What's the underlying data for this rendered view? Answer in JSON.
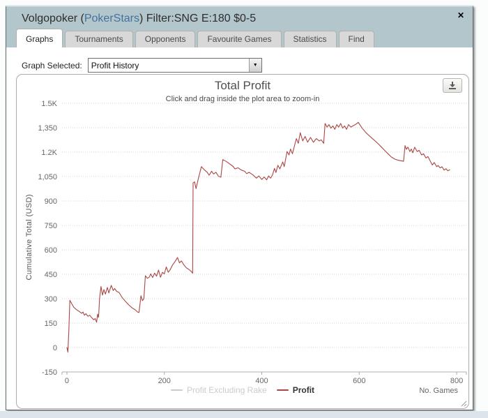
{
  "dialog": {
    "header": {
      "title_prefix": "Volgopoker (",
      "title_brand": "PokerStars",
      "title_suffix": ") Filter:SNG E:180 $0-5",
      "brand_color": "#44719e",
      "close_icon": "✕",
      "background_color": "#b3c6cc"
    },
    "tabs": [
      {
        "label": "Graphs",
        "active": true
      },
      {
        "label": "Tournaments",
        "active": false
      },
      {
        "label": "Opponents",
        "active": false
      },
      {
        "label": "Favourite Games",
        "active": false
      },
      {
        "label": "Statistics",
        "active": false
      },
      {
        "label": "Find",
        "active": false
      }
    ],
    "graph_selector": {
      "label": "Graph Selected:",
      "value": "Profit History",
      "dropdown_icon": "▼"
    }
  },
  "chart_data": {
    "type": "line",
    "title": "Total Profit",
    "subtitle": "Click and drag inside the plot area to zoom-in",
    "xlabel": "No. Games",
    "ylabel": "Cumulative Total (USD)",
    "xlim": [
      -10,
      820
    ],
    "ylim": [
      -150,
      1500
    ],
    "x_ticks": [
      0,
      200,
      400,
      600,
      800
    ],
    "y_ticks": [
      {
        "value": -150,
        "label": "-150"
      },
      {
        "value": 0,
        "label": "0"
      },
      {
        "value": 150,
        "label": "150"
      },
      {
        "value": 300,
        "label": "300"
      },
      {
        "value": 450,
        "label": "450"
      },
      {
        "value": 600,
        "label": "600"
      },
      {
        "value": 750,
        "label": "750"
      },
      {
        "value": 900,
        "label": "900"
      },
      {
        "value": 1050,
        "label": "1,050"
      },
      {
        "value": 1200,
        "label": "1.2K"
      },
      {
        "value": 1350,
        "label": "1,350"
      },
      {
        "value": 1500,
        "label": "1.5K"
      }
    ],
    "grid": "horizontal-dotted",
    "grid_color": "#d4d4d4",
    "axis_line_color": "#aab0b3",
    "legend_position": "bottom-center",
    "series": [
      {
        "name": "Profit Excluding Rake",
        "color": "#cccccc",
        "visible": false,
        "points": []
      },
      {
        "name": "Profit",
        "color": "#AA4643",
        "visible": true,
        "points": [
          [
            0,
            0
          ],
          [
            2,
            -28
          ],
          [
            4,
            110
          ],
          [
            6,
            290
          ],
          [
            10,
            268
          ],
          [
            14,
            248
          ],
          [
            18,
            236
          ],
          [
            22,
            228
          ],
          [
            26,
            220
          ],
          [
            30,
            210
          ],
          [
            33,
            218
          ],
          [
            36,
            198
          ],
          [
            39,
            208
          ],
          [
            43,
            192
          ],
          [
            47,
            198
          ],
          [
            51,
            183
          ],
          [
            55,
            170
          ],
          [
            58,
            178
          ],
          [
            61,
            155
          ],
          [
            63,
            205
          ],
          [
            65,
            185
          ],
          [
            67,
            300
          ],
          [
            70,
            375
          ],
          [
            73,
            322
          ],
          [
            76,
            356
          ],
          [
            79,
            328
          ],
          [
            83,
            369
          ],
          [
            86,
            335
          ],
          [
            91,
            382
          ],
          [
            95,
            350
          ],
          [
            98,
            362
          ],
          [
            102,
            345
          ],
          [
            107,
            338
          ],
          [
            113,
            308
          ],
          [
            120,
            284
          ],
          [
            127,
            262
          ],
          [
            134,
            243
          ],
          [
            140,
            232
          ],
          [
            145,
            218
          ],
          [
            148,
            215
          ],
          [
            152,
            318
          ],
          [
            155,
            288
          ],
          [
            158,
            300
          ],
          [
            161,
            441
          ],
          [
            165,
            425
          ],
          [
            169,
            432
          ],
          [
            172,
            452
          ],
          [
            176,
            430
          ],
          [
            180,
            457
          ],
          [
            184,
            438
          ],
          [
            188,
            476
          ],
          [
            192,
            431
          ],
          [
            196,
            462
          ],
          [
            200,
            452
          ],
          [
            204,
            495
          ],
          [
            208,
            462
          ],
          [
            212,
            478
          ],
          [
            217,
            508
          ],
          [
            222,
            528
          ],
          [
            227,
            553
          ],
          [
            231,
            520
          ],
          [
            235,
            532
          ],
          [
            240,
            508
          ],
          [
            245,
            490
          ],
          [
            250,
            480
          ],
          [
            255,
            468
          ],
          [
            258,
            456
          ],
          [
            259,
            1011
          ],
          [
            262,
            1018
          ],
          [
            265,
            976
          ],
          [
            270,
            1040
          ],
          [
            276,
            1111
          ],
          [
            282,
            1092
          ],
          [
            288,
            1076
          ],
          [
            292,
            1058
          ],
          [
            297,
            1083
          ],
          [
            301,
            1066
          ],
          [
            306,
            1076
          ],
          [
            311,
            1052
          ],
          [
            316,
            1046
          ],
          [
            320,
            1154
          ],
          [
            327,
            1143
          ],
          [
            334,
            1128
          ],
          [
            341,
            1112
          ],
          [
            345,
            1097
          ],
          [
            351,
            1104
          ],
          [
            358,
            1090
          ],
          [
            365,
            1082
          ],
          [
            369,
            1068
          ],
          [
            374,
            1076
          ],
          [
            382,
            1060
          ],
          [
            389,
            1040
          ],
          [
            394,
            1054
          ],
          [
            400,
            1032
          ],
          [
            405,
            1047
          ],
          [
            410,
            1030
          ],
          [
            414,
            1054
          ],
          [
            418,
            1040
          ],
          [
            422,
            1060
          ],
          [
            426,
            1100
          ],
          [
            429,
            1075
          ],
          [
            433,
            1119
          ],
          [
            437,
            1097
          ],
          [
            443,
            1140
          ],
          [
            446,
            1111
          ],
          [
            452,
            1204
          ],
          [
            456,
            1183
          ],
          [
            459,
            1219
          ],
          [
            463,
            1190
          ],
          [
            471,
            1283
          ],
          [
            475,
            1254
          ],
          [
            479,
            1319
          ],
          [
            484,
            1269
          ],
          [
            489,
            1297
          ],
          [
            494,
            1261
          ],
          [
            500,
            1290
          ],
          [
            506,
            1261
          ],
          [
            512,
            1283
          ],
          [
            518,
            1269
          ],
          [
            522,
            1276
          ],
          [
            527,
            1254
          ],
          [
            530,
            1376
          ],
          [
            534,
            1354
          ],
          [
            538,
            1369
          ],
          [
            542,
            1347
          ],
          [
            546,
            1361
          ],
          [
            550,
            1340
          ],
          [
            554,
            1369
          ],
          [
            558,
            1354
          ],
          [
            562,
            1376
          ],
          [
            566,
            1347
          ],
          [
            570,
            1361
          ],
          [
            574,
            1340
          ],
          [
            578,
            1369
          ],
          [
            583,
            1354
          ],
          [
            588,
            1363
          ],
          [
            593,
            1371
          ],
          [
            598,
            1383
          ],
          [
            606,
            1347
          ],
          [
            614,
            1319
          ],
          [
            622,
            1297
          ],
          [
            630,
            1276
          ],
          [
            638,
            1254
          ],
          [
            645,
            1233
          ],
          [
            652,
            1211
          ],
          [
            659,
            1190
          ],
          [
            666,
            1170
          ],
          [
            673,
            1157
          ],
          [
            680,
            1150
          ],
          [
            686,
            1147
          ],
          [
            691,
            1144
          ],
          [
            694,
            1240
          ],
          [
            697,
            1217
          ],
          [
            700,
            1231
          ],
          [
            704,
            1204
          ],
          [
            707,
            1219
          ],
          [
            710,
            1196
          ],
          [
            714,
            1230
          ],
          [
            719,
            1204
          ],
          [
            723,
            1211
          ],
          [
            728,
            1183
          ],
          [
            732,
            1190
          ],
          [
            737,
            1164
          ],
          [
            741,
            1173
          ],
          [
            746,
            1144
          ],
          [
            750,
            1121
          ],
          [
            754,
            1136
          ],
          [
            759,
            1111
          ],
          [
            762,
            1118
          ],
          [
            766,
            1103
          ],
          [
            770,
            1110
          ],
          [
            774,
            1090
          ],
          [
            778,
            1098
          ],
          [
            782,
            1085
          ],
          [
            786,
            1092
          ]
        ]
      }
    ]
  }
}
